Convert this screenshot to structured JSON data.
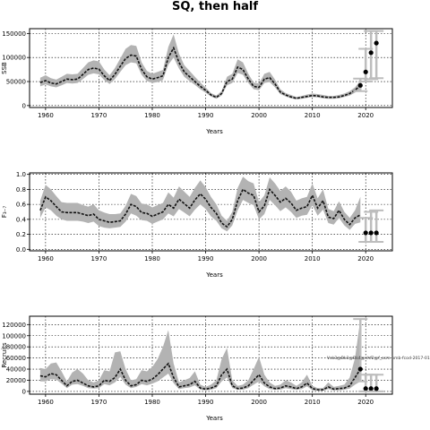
{
  "title": "SQ, then half",
  "colors": {
    "band": "#b3b3b3",
    "line": "#111111",
    "grid": "#000000",
    "proj_interval": "#bdbdbd",
    "proj_point": "#000000"
  },
  "chart_data": [
    {
      "type": "line",
      "title": "SQ, then half",
      "xlabel": "Years",
      "ylabel": "SSB",
      "xlim": [
        1957,
        2025
      ],
      "ylim": [
        -4000,
        160000
      ],
      "x_ticks": [
        1960,
        1970,
        1980,
        1990,
        2000,
        2010,
        2020
      ],
      "y_ticks": [
        0,
        50000,
        100000,
        150000
      ],
      "y_tick_labels": [
        "0",
        "50000",
        "100000",
        "150000"
      ],
      "grid": true,
      "series": [
        {
          "x": [
            1959,
            1960,
            1961,
            1962,
            1963,
            1964,
            1965,
            1966,
            1967,
            1968,
            1969,
            1970,
            1971,
            1972,
            1973,
            1974,
            1975,
            1976,
            1977,
            1978,
            1979,
            1980,
            1981,
            1982,
            1983,
            1984,
            1985,
            1986,
            1987,
            1988,
            1989,
            1990,
            1991,
            1992,
            1993,
            1994,
            1995,
            1996,
            1997,
            1998,
            1999,
            2000,
            2001,
            2002,
            2003,
            2004,
            2005,
            2006,
            2007,
            2008,
            2009,
            2010,
            2011,
            2012,
            2013,
            2014,
            2015,
            2016,
            2017,
            2018,
            2019
          ],
          "y": [
            48000,
            52000,
            47000,
            45000,
            50000,
            55000,
            54000,
            55000,
            65000,
            75000,
            78000,
            76000,
            62000,
            52000,
            65000,
            82000,
            98000,
            105000,
            103000,
            75000,
            60000,
            55000,
            58000,
            62000,
            100000,
            120000,
            90000,
            70000,
            60000,
            50000,
            40000,
            32000,
            22000,
            17000,
            25000,
            50000,
            55000,
            80000,
            75000,
            55000,
            40000,
            38000,
            55000,
            58000,
            45000,
            28000,
            22000,
            18000,
            15000,
            17000,
            19000,
            21000,
            20000,
            18000,
            17000,
            17000,
            18000,
            21000,
            25000,
            32000,
            42000
          ],
          "lower": [
            40000,
            44000,
            40000,
            38000,
            42000,
            47000,
            46000,
            47000,
            55000,
            64000,
            67000,
            65000,
            53000,
            45000,
            55000,
            70000,
            84000,
            90000,
            88000,
            64000,
            51000,
            47000,
            49000,
            53000,
            85000,
            100000,
            77000,
            60000,
            51000,
            43000,
            34000,
            27000,
            19000,
            14000,
            21000,
            42000,
            47000,
            68000,
            64000,
            47000,
            34000,
            32000,
            47000,
            49000,
            38000,
            24000,
            19000,
            15000,
            13000,
            14000,
            16000,
            18000,
            17000,
            15000,
            14000,
            14000,
            15000,
            18000,
            21000,
            27000,
            34000
          ],
          "upper": [
            58000,
            63000,
            57000,
            54000,
            60000,
            66000,
            65000,
            66000,
            78000,
            90000,
            94000,
            92000,
            75000,
            63000,
            78000,
            98000,
            118000,
            126000,
            124000,
            90000,
            72000,
            66000,
            70000,
            74000,
            122000,
            148000,
            108000,
            84000,
            72000,
            60000,
            48000,
            38000,
            26000,
            21000,
            30000,
            60000,
            66000,
            96000,
            90000,
            66000,
            48000,
            46000,
            66000,
            70000,
            54000,
            34000,
            26000,
            22000,
            18000,
            20000,
            23000,
            25000,
            24000,
            22000,
            20000,
            20000,
            22000,
            25000,
            30000,
            38000,
            52000
          ]
        }
      ],
      "projections": [
        {
          "x": 2019,
          "y": 42000,
          "low": 30000,
          "high": 56000
        },
        {
          "x": 2020,
          "y": 70000,
          "low": 50000,
          "high": 118000
        },
        {
          "x": 2021,
          "y": 110000,
          "low": 55000,
          "high": 155000
        },
        {
          "x": 2022,
          "y": 130000,
          "low": 57000,
          "high": 155000
        }
      ]
    },
    {
      "type": "line",
      "xlabel": "Years",
      "ylabel": "F₃₋₇",
      "xlim": [
        1957,
        2025
      ],
      "ylim": [
        -0.02,
        1.02
      ],
      "x_ticks": [
        1960,
        1970,
        1980,
        1990,
        2000,
        2010,
        2020
      ],
      "y_ticks": [
        0.0,
        0.2,
        0.4,
        0.6,
        0.8,
        1.0
      ],
      "y_tick_labels": [
        "0.0",
        "0.2",
        "0.4",
        "0.6",
        "0.8",
        "1.0"
      ],
      "grid": true,
      "series": [
        {
          "x": [
            1959,
            1960,
            1961,
            1962,
            1963,
            1964,
            1965,
            1966,
            1967,
            1968,
            1969,
            1970,
            1971,
            1972,
            1973,
            1974,
            1975,
            1976,
            1977,
            1978,
            1979,
            1980,
            1981,
            1982,
            1983,
            1984,
            1985,
            1986,
            1987,
            1988,
            1989,
            1990,
            1991,
            1992,
            1993,
            1994,
            1995,
            1996,
            1997,
            1998,
            1999,
            2000,
            2001,
            2002,
            2003,
            2004,
            2005,
            2006,
            2007,
            2008,
            2009,
            2010,
            2011,
            2012,
            2013,
            2014,
            2015,
            2016,
            2017,
            2018,
            2019
          ],
          "y": [
            0.52,
            0.7,
            0.65,
            0.57,
            0.5,
            0.49,
            0.49,
            0.49,
            0.47,
            0.45,
            0.47,
            0.4,
            0.38,
            0.36,
            0.37,
            0.38,
            0.47,
            0.6,
            0.57,
            0.49,
            0.48,
            0.44,
            0.47,
            0.5,
            0.6,
            0.55,
            0.67,
            0.61,
            0.55,
            0.66,
            0.74,
            0.67,
            0.56,
            0.48,
            0.35,
            0.3,
            0.4,
            0.65,
            0.8,
            0.75,
            0.72,
            0.5,
            0.58,
            0.8,
            0.72,
            0.63,
            0.68,
            0.62,
            0.52,
            0.55,
            0.57,
            0.72,
            0.55,
            0.65,
            0.43,
            0.41,
            0.52,
            0.4,
            0.33,
            0.42,
            0.46
          ],
          "lower": [
            0.42,
            0.56,
            0.52,
            0.45,
            0.4,
            0.38,
            0.38,
            0.38,
            0.37,
            0.35,
            0.37,
            0.31,
            0.29,
            0.28,
            0.29,
            0.3,
            0.37,
            0.48,
            0.45,
            0.39,
            0.38,
            0.34,
            0.37,
            0.4,
            0.48,
            0.44,
            0.54,
            0.49,
            0.44,
            0.53,
            0.6,
            0.54,
            0.44,
            0.38,
            0.28,
            0.24,
            0.32,
            0.52,
            0.66,
            0.62,
            0.59,
            0.4,
            0.47,
            0.66,
            0.59,
            0.51,
            0.56,
            0.5,
            0.42,
            0.45,
            0.46,
            0.59,
            0.45,
            0.53,
            0.35,
            0.33,
            0.42,
            0.32,
            0.26,
            0.34,
            0.36
          ],
          "upper": [
            0.65,
            0.86,
            0.8,
            0.71,
            0.63,
            0.62,
            0.62,
            0.62,
            0.59,
            0.57,
            0.6,
            0.52,
            0.49,
            0.47,
            0.47,
            0.48,
            0.58,
            0.74,
            0.71,
            0.61,
            0.6,
            0.56,
            0.59,
            0.62,
            0.76,
            0.69,
            0.84,
            0.77,
            0.7,
            0.82,
            0.92,
            0.83,
            0.7,
            0.6,
            0.45,
            0.38,
            0.5,
            0.82,
            0.97,
            0.91,
            0.88,
            0.63,
            0.72,
            0.96,
            0.88,
            0.78,
            0.84,
            0.77,
            0.65,
            0.68,
            0.7,
            0.88,
            0.68,
            0.8,
            0.54,
            0.51,
            0.64,
            0.5,
            0.42,
            0.52,
            0.7
          ]
        }
      ],
      "projections": [
        {
          "x": 2020,
          "y": 0.22,
          "low": 0.1,
          "high": 0.42
        },
        {
          "x": 2021,
          "y": 0.22,
          "low": 0.1,
          "high": 0.5
        },
        {
          "x": 2022,
          "y": 0.22,
          "low": 0.1,
          "high": 0.52
        }
      ]
    },
    {
      "type": "line",
      "xlabel": "Years",
      "ylabel": "Recruits",
      "xlim": [
        1957,
        2025
      ],
      "ylim": [
        -5000,
        135000
      ],
      "x_ticks": [
        1960,
        1970,
        1980,
        1990,
        2000,
        2010,
        2020
      ],
      "y_ticks": [
        0,
        20000,
        40000,
        60000,
        80000,
        100000,
        120000
      ],
      "y_tick_labels": [
        "0",
        "20000",
        "40000",
        "60000",
        "80000",
        "100000",
        "120000"
      ],
      "grid": true,
      "annotation": "Vsk3@Bk3@Bk4@ehf2@f_ssm-bmb-fcod-2017-01",
      "series": [
        {
          "x": [
            1959,
            1960,
            1961,
            1962,
            1963,
            1964,
            1965,
            1966,
            1967,
            1968,
            1969,
            1970,
            1971,
            1972,
            1973,
            1974,
            1975,
            1976,
            1977,
            1978,
            1979,
            1980,
            1981,
            1982,
            1983,
            1984,
            1985,
            1986,
            1987,
            1988,
            1989,
            1990,
            1991,
            1992,
            1993,
            1994,
            1995,
            1996,
            1997,
            1998,
            1999,
            2000,
            2001,
            2002,
            2003,
            2004,
            2005,
            2006,
            2007,
            2008,
            2009,
            2010,
            2011,
            2012,
            2013,
            2014,
            2015,
            2016,
            2017,
            2018,
            2019
          ],
          "y": [
            28000,
            26000,
            32000,
            30000,
            20000,
            10000,
            18000,
            20000,
            15000,
            10000,
            8000,
            10000,
            20000,
            18000,
            25000,
            40000,
            20000,
            10000,
            12000,
            20000,
            18000,
            22000,
            30000,
            40000,
            50000,
            25000,
            8000,
            10000,
            12000,
            18000,
            6000,
            4000,
            6000,
            10000,
            30000,
            40000,
            10000,
            5000,
            6000,
            10000,
            20000,
            30000,
            15000,
            8000,
            5000,
            6000,
            10000,
            8000,
            5000,
            8000,
            15000,
            5000,
            3000,
            3000,
            8000,
            4000,
            5000,
            6000,
            10000,
            25000,
            40000
          ],
          "lower": [
            18000,
            18000,
            22000,
            21000,
            14000,
            6000,
            12000,
            13000,
            10000,
            6000,
            5000,
            6000,
            13000,
            11000,
            16000,
            26000,
            12000,
            6000,
            8000,
            13000,
            11000,
            14000,
            18000,
            25000,
            32000,
            15000,
            4000,
            6000,
            7000,
            11000,
            3000,
            2000,
            3000,
            6000,
            18000,
            25000,
            6000,
            3000,
            3000,
            6000,
            12000,
            18000,
            9000,
            4000,
            3000,
            3000,
            6000,
            4000,
            3000,
            4000,
            9000,
            2000,
            1000,
            1000,
            4000,
            2000,
            2000,
            3000,
            5000,
            12000,
            18000
          ],
          "upper": [
            42000,
            40000,
            50000,
            52000,
            36000,
            18000,
            34000,
            40000,
            32000,
            20000,
            16000,
            20000,
            38000,
            36000,
            70000,
            72000,
            40000,
            20000,
            22000,
            38000,
            36000,
            44000,
            58000,
            80000,
            110000,
            50000,
            16000,
            20000,
            24000,
            36000,
            12000,
            8000,
            12000,
            20000,
            58000,
            78000,
            20000,
            10000,
            12000,
            20000,
            40000,
            62000,
            30000,
            16000,
            10000,
            12000,
            20000,
            16000,
            10000,
            16000,
            30000,
            10000,
            6000,
            6000,
            16000,
            8000,
            10000,
            12000,
            25000,
            60000,
            130000
          ]
        }
      ],
      "projections": [
        {
          "x": 2019,
          "y": 40000,
          "low": 18000,
          "high": 130000
        },
        {
          "x": 2020,
          "y": 5000,
          "low": 0,
          "high": 30000
        },
        {
          "x": 2021,
          "y": 5000,
          "low": 0,
          "high": 30000
        },
        {
          "x": 2022,
          "y": 5000,
          "low": 0,
          "high": 30000
        }
      ]
    }
  ]
}
